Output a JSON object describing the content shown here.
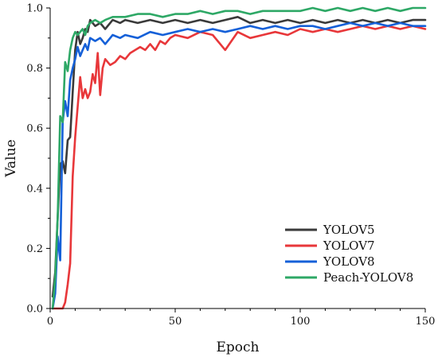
{
  "chart_data": {
    "type": "line",
    "xlabel": "Epoch",
    "ylabel": "Value",
    "xlim": [
      0,
      150
    ],
    "ylim": [
      0,
      1.0
    ],
    "xticks": [
      0,
      50,
      100,
      150
    ],
    "yticks": [
      0.0,
      0.2,
      0.4,
      0.6,
      0.8,
      1.0
    ],
    "ytick_labels": [
      "0.0",
      "0.2",
      "0.4",
      "0.6",
      "0.8",
      "1.0"
    ],
    "grid": false,
    "legend_position": "bottom-right",
    "series": [
      {
        "name": "YOLOV5",
        "color": "#3a3a3a",
        "x": [
          1,
          2,
          3,
          4,
          5,
          6,
          7,
          8,
          9,
          10,
          11,
          12,
          13,
          14,
          15,
          16,
          18,
          20,
          22,
          25,
          28,
          30,
          35,
          40,
          45,
          50,
          55,
          60,
          65,
          70,
          75,
          80,
          85,
          90,
          95,
          100,
          105,
          110,
          115,
          120,
          125,
          130,
          135,
          140,
          145,
          150
        ],
        "y": [
          0.04,
          0.12,
          0.3,
          0.48,
          0.49,
          0.45,
          0.56,
          0.57,
          0.72,
          0.86,
          0.92,
          0.88,
          0.9,
          0.93,
          0.92,
          0.96,
          0.94,
          0.95,
          0.93,
          0.96,
          0.95,
          0.96,
          0.95,
          0.96,
          0.95,
          0.96,
          0.95,
          0.96,
          0.95,
          0.96,
          0.97,
          0.95,
          0.96,
          0.95,
          0.96,
          0.95,
          0.96,
          0.95,
          0.96,
          0.95,
          0.96,
          0.95,
          0.96,
          0.95,
          0.96,
          0.96
        ]
      },
      {
        "name": "YOLOV7",
        "color": "#e8373a",
        "x": [
          1,
          2,
          3,
          4,
          5,
          6,
          7,
          8,
          9,
          10,
          11,
          12,
          13,
          14,
          15,
          16,
          17,
          18,
          19,
          20,
          21,
          22,
          24,
          26,
          28,
          30,
          32,
          34,
          36,
          38,
          40,
          42,
          44,
          46,
          48,
          50,
          55,
          60,
          65,
          70,
          75,
          80,
          85,
          90,
          95,
          100,
          105,
          110,
          115,
          120,
          125,
          130,
          135,
          140,
          145,
          150
        ],
        "y": [
          0.0,
          0.0,
          0.0,
          0.0,
          0.0,
          0.02,
          0.08,
          0.15,
          0.44,
          0.57,
          0.67,
          0.77,
          0.7,
          0.73,
          0.7,
          0.72,
          0.78,
          0.75,
          0.85,
          0.71,
          0.8,
          0.83,
          0.81,
          0.82,
          0.84,
          0.83,
          0.85,
          0.86,
          0.87,
          0.86,
          0.88,
          0.86,
          0.89,
          0.88,
          0.9,
          0.91,
          0.9,
          0.92,
          0.91,
          0.86,
          0.92,
          0.9,
          0.91,
          0.92,
          0.91,
          0.93,
          0.92,
          0.93,
          0.92,
          0.93,
          0.94,
          0.93,
          0.94,
          0.93,
          0.94,
          0.93
        ]
      },
      {
        "name": "YOLOV8",
        "color": "#1560d8",
        "x": [
          1,
          2,
          3,
          4,
          5,
          6,
          7,
          8,
          9,
          10,
          11,
          12,
          13,
          14,
          15,
          16,
          18,
          20,
          22,
          25,
          28,
          30,
          35,
          40,
          45,
          50,
          55,
          60,
          65,
          70,
          75,
          80,
          85,
          90,
          95,
          100,
          105,
          110,
          115,
          120,
          125,
          130,
          135,
          140,
          145,
          150
        ],
        "y": [
          0.0,
          0.05,
          0.24,
          0.16,
          0.62,
          0.69,
          0.64,
          0.76,
          0.8,
          0.83,
          0.87,
          0.84,
          0.86,
          0.88,
          0.86,
          0.9,
          0.89,
          0.9,
          0.88,
          0.91,
          0.9,
          0.91,
          0.9,
          0.92,
          0.91,
          0.92,
          0.93,
          0.92,
          0.93,
          0.92,
          0.93,
          0.94,
          0.93,
          0.94,
          0.93,
          0.94,
          0.94,
          0.93,
          0.94,
          0.95,
          0.94,
          0.95,
          0.94,
          0.95,
          0.94,
          0.94
        ]
      },
      {
        "name": "Peach-YOLOV8",
        "color": "#2ea866",
        "x": [
          1,
          2,
          3,
          4,
          5,
          6,
          7,
          8,
          9,
          10,
          11,
          12,
          13,
          14,
          15,
          16,
          18,
          20,
          22,
          25,
          28,
          30,
          35,
          40,
          45,
          50,
          55,
          60,
          65,
          70,
          75,
          80,
          85,
          90,
          95,
          100,
          105,
          110,
          115,
          120,
          125,
          130,
          135,
          140,
          145,
          150
        ],
        "y": [
          0.0,
          0.1,
          0.3,
          0.64,
          0.62,
          0.82,
          0.79,
          0.86,
          0.9,
          0.92,
          0.91,
          0.92,
          0.93,
          0.91,
          0.94,
          0.95,
          0.96,
          0.95,
          0.96,
          0.97,
          0.97,
          0.97,
          0.98,
          0.98,
          0.97,
          0.98,
          0.98,
          0.99,
          0.98,
          0.99,
          0.99,
          0.98,
          0.99,
          0.99,
          0.99,
          0.99,
          1.0,
          0.99,
          1.0,
          0.99,
          1.0,
          0.99,
          1.0,
          0.99,
          1.0,
          1.0
        ]
      }
    ]
  }
}
